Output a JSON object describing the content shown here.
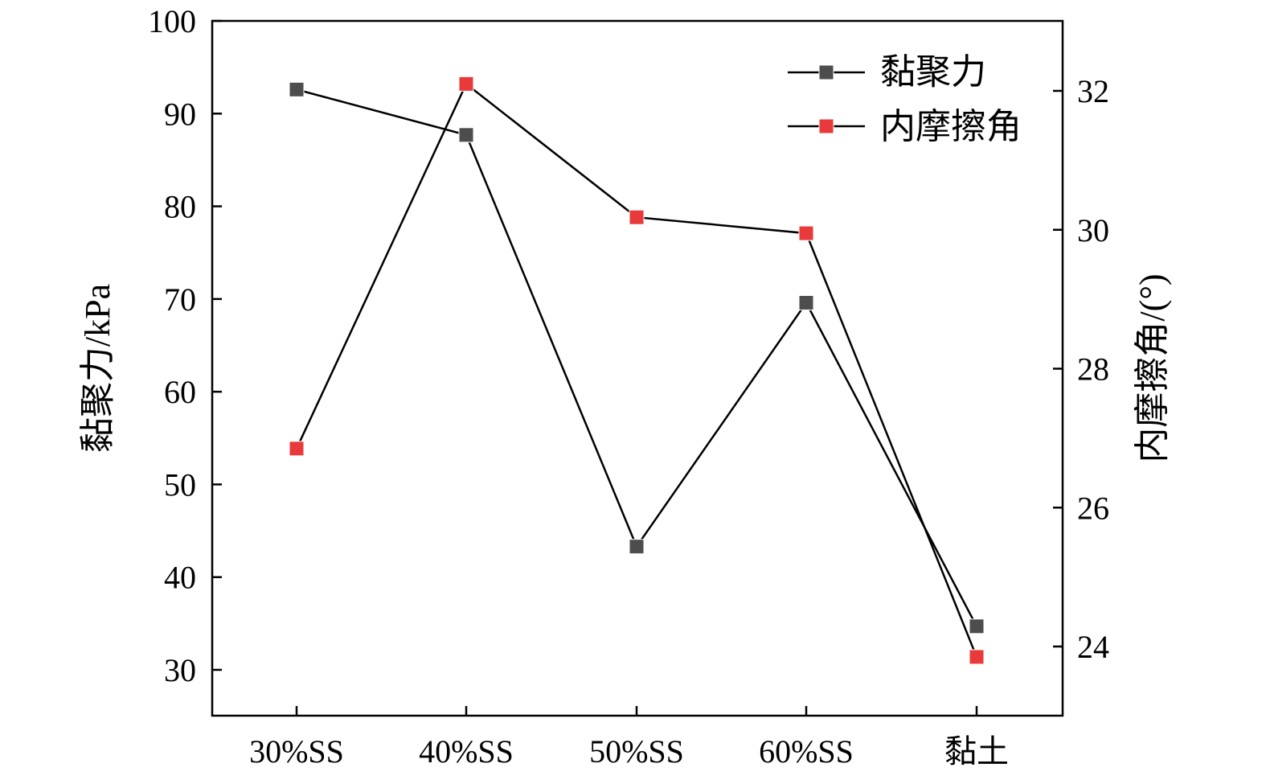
{
  "chart_data": {
    "type": "line",
    "categories": [
      "30%SS",
      "40%SS",
      "50%SS",
      "60%SS",
      "黏土"
    ],
    "ylabel": "黏聚力/kPa",
    "ylabel_right": "内摩擦角/(°)",
    "ylim": [
      25,
      100
    ],
    "ylim_right": [
      23,
      33
    ],
    "yticks": [
      30,
      40,
      50,
      60,
      70,
      80,
      90,
      100
    ],
    "yticks_right": [
      24,
      26,
      28,
      30,
      32
    ],
    "grid": false,
    "legend_position": "top-right",
    "series": [
      {
        "name": "黏聚力",
        "axis": "left",
        "color": "#4d4d4d",
        "values": [
          92.6,
          87.7,
          43.3,
          69.6,
          34.7
        ]
      },
      {
        "name": "内摩擦角",
        "axis": "right",
        "color": "#e83a3a",
        "values": [
          26.85,
          32.1,
          30.18,
          29.95,
          23.85
        ]
      }
    ]
  }
}
